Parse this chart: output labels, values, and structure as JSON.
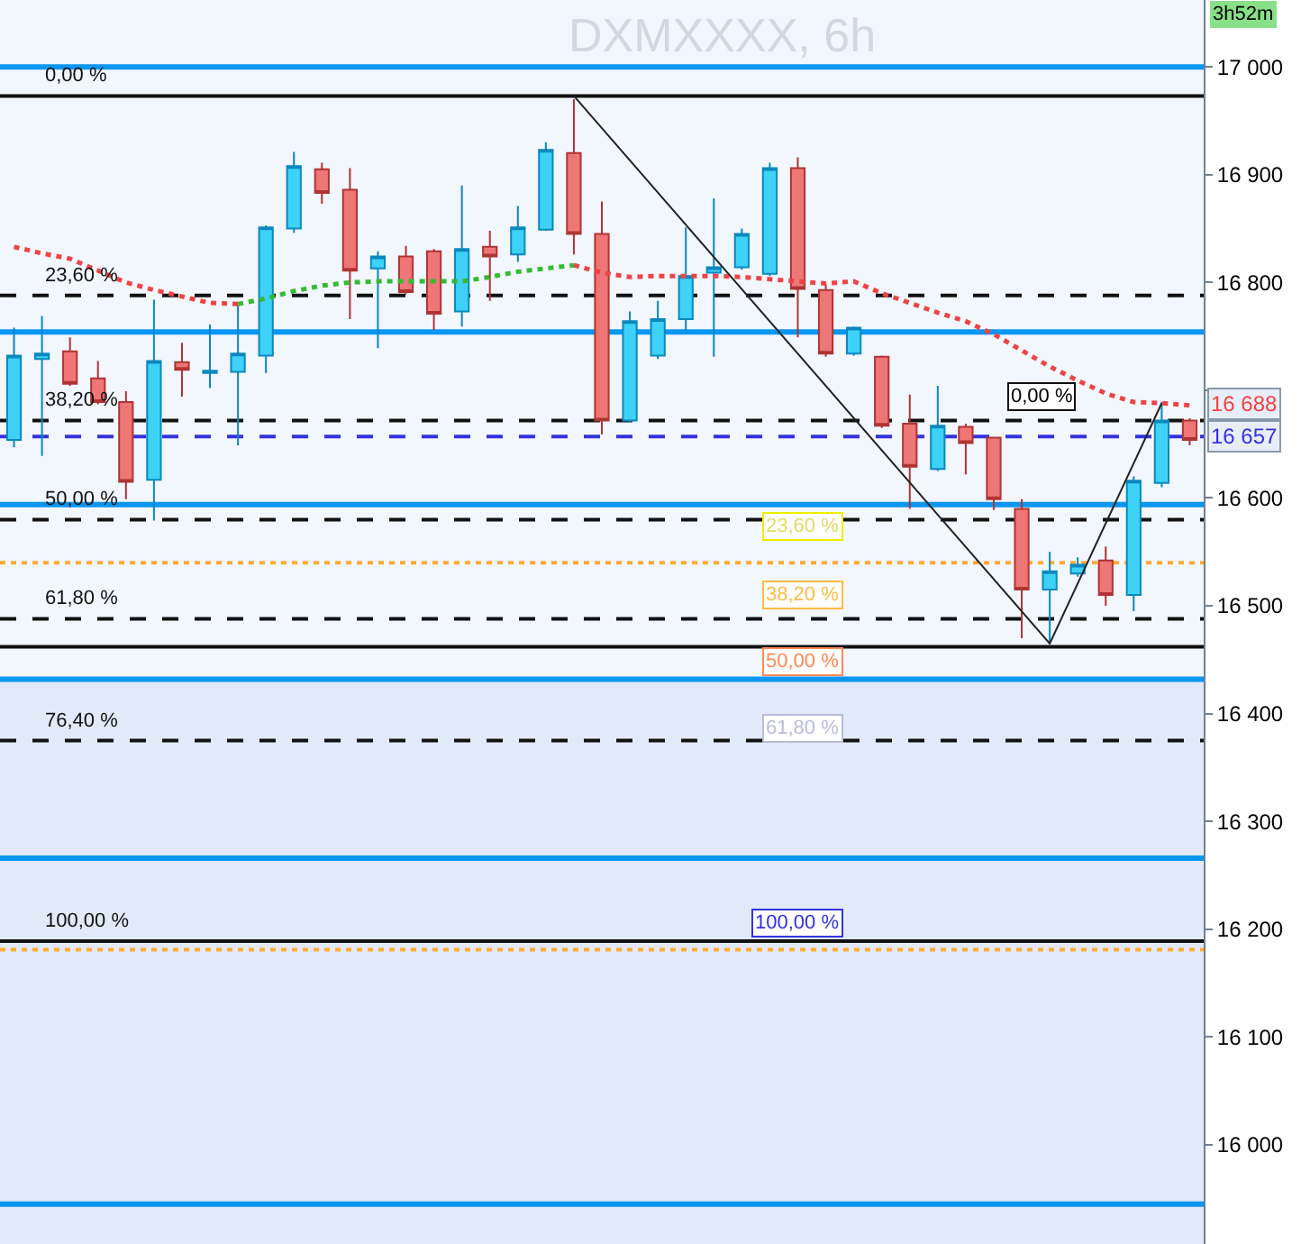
{
  "chart_data": {
    "type": "candlestick",
    "title": "DXMXXXX, 6h",
    "categories": [
      null,
      null,
      null,
      null,
      null,
      null,
      null,
      null,
      null,
      null,
      null,
      null,
      null,
      null,
      null,
      null,
      null,
      null,
      null,
      null,
      null,
      null,
      null,
      null,
      null,
      null,
      null,
      null,
      null,
      null,
      null,
      null,
      null,
      null,
      null,
      null,
      null,
      null,
      null,
      null,
      null,
      null,
      null
    ],
    "ohlc": [
      [
        16654,
        16758,
        16647,
        16732
      ],
      [
        16729,
        16769,
        16639,
        16734
      ],
      [
        16736,
        16749,
        16704,
        16706
      ],
      [
        16711,
        16727,
        16687,
        16689
      ],
      [
        16689,
        16699,
        16599,
        16615
      ],
      [
        16617,
        16784,
        16579,
        16727
      ],
      [
        16726,
        16744,
        16694,
        16719
      ],
      [
        16716,
        16761,
        16702,
        16718
      ],
      [
        16717,
        16779,
        16649,
        16734
      ],
      [
        16732,
        16853,
        16716,
        16851
      ],
      [
        16850,
        16921,
        16846,
        16908
      ],
      [
        16905,
        16911,
        16873,
        16883
      ],
      [
        16886,
        16906,
        16766,
        16811
      ],
      [
        16813,
        16829,
        16739,
        16824
      ],
      [
        16824,
        16834,
        16789,
        16791
      ],
      [
        16829,
        16831,
        16756,
        16771
      ],
      [
        16773,
        16890,
        16759,
        16831
      ],
      [
        16833,
        16848,
        16783,
        16824
      ],
      [
        16826,
        16871,
        16819,
        16851
      ],
      [
        16849,
        16930,
        16848,
        16923
      ],
      [
        16920,
        16970,
        16826,
        16845
      ],
      [
        16845,
        16875,
        16659,
        16672
      ],
      [
        16672,
        16773,
        16670,
        16764
      ],
      [
        16732,
        16783,
        16729,
        16766
      ],
      [
        16766,
        16851,
        16756,
        16806
      ],
      [
        16809,
        16878,
        16731,
        16814
      ],
      [
        16814,
        16850,
        16812,
        16845
      ],
      [
        16808,
        16911,
        16806,
        16906
      ],
      [
        16906,
        16916,
        16749,
        16794
      ],
      [
        16793,
        16798,
        16731,
        16734
      ],
      [
        16734,
        16759,
        16732,
        16758
      ],
      [
        16731,
        16732,
        16665,
        16667
      ],
      [
        16669,
        16696,
        16590,
        16629
      ],
      [
        16627,
        16704,
        16625,
        16667
      ],
      [
        16666,
        16669,
        16622,
        16651
      ],
      [
        16656,
        16656,
        16589,
        16599
      ],
      [
        16590,
        16599,
        16470,
        16515
      ],
      [
        16515,
        16550,
        16465,
        16532
      ],
      [
        16530,
        16545,
        16527,
        16538
      ],
      [
        16542,
        16555,
        16500,
        16510
      ],
      [
        16510,
        16620,
        16495,
        16616
      ],
      [
        16614,
        16689,
        16610,
        16672
      ],
      [
        16672,
        16674,
        16649,
        16654
      ]
    ],
    "series": [
      {
        "type": "line",
        "color": "#ee4444",
        "line_style": "dotted",
        "values": [
          16833,
          16827,
          16822,
          16811,
          16800,
          16793,
          16787,
          16781,
          16780,
          null,
          null,
          null,
          null,
          null,
          null,
          null,
          null,
          null,
          null,
          null,
          16816,
          16809,
          16805,
          16806,
          16806,
          16806,
          16805,
          16803,
          16801,
          16799,
          16801,
          16790,
          16781,
          16772,
          16764,
          16752,
          16737,
          16722,
          16709,
          16697,
          16689,
          16688,
          16686
        ]
      },
      {
        "type": "line",
        "color": "#33bb33",
        "line_style": "dotted",
        "values": [
          null,
          null,
          null,
          null,
          null,
          null,
          null,
          null,
          16780,
          16785,
          16792,
          16797,
          16800,
          16801,
          16801,
          16801,
          16801,
          16805,
          16810,
          16813,
          16816,
          null,
          null,
          null,
          null,
          null,
          null,
          null,
          null,
          null,
          null,
          null,
          null,
          null,
          null,
          null,
          null,
          null,
          null,
          null,
          null,
          null,
          null
        ]
      },
      {
        "type": "line",
        "color": "#222222",
        "line_style": "solid",
        "values": [
          null,
          null,
          null,
          null,
          null,
          null,
          null,
          null,
          null,
          null,
          null,
          null,
          null,
          null,
          null,
          null,
          null,
          null,
          null,
          null,
          16973,
          null,
          null,
          null,
          null,
          null,
          null,
          null,
          null,
          null,
          null,
          null,
          null,
          null,
          null,
          null,
          null,
          16465,
          null,
          null,
          null,
          16688,
          null
        ]
      }
    ],
    "ylim": [
      15908,
      17062
    ],
    "yticks": [
      {
        "value": 16000,
        "label": "16 000"
      },
      {
        "value": 16100,
        "label": "16 100"
      },
      {
        "value": 16200,
        "label": "16 200"
      },
      {
        "value": 16300,
        "label": "16 300"
      },
      {
        "value": 16400,
        "label": "16 400"
      },
      {
        "value": 16500,
        "label": "16 500"
      },
      {
        "value": 16600,
        "label": "16 600"
      },
      {
        "value": 16700,
        "label": null
      },
      {
        "value": 16800,
        "label": "16 800"
      },
      {
        "value": 16900,
        "label": "16 900"
      },
      {
        "value": 17000,
        "label": "17 000"
      }
    ],
    "ref_lines": [
      {
        "axis": "y",
        "value": 17000,
        "color": "#0a96f0",
        "line_style": "solid"
      },
      {
        "axis": "y",
        "value": 16754,
        "color": "#0a96f0",
        "line_style": "solid"
      },
      {
        "axis": "y",
        "value": 16594,
        "color": "#0a96f0",
        "line_style": "solid"
      },
      {
        "axis": "y",
        "value": 16432,
        "color": "#0a96f0",
        "line_style": "solid"
      },
      {
        "axis": "y",
        "value": 16266,
        "color": "#0a96f0",
        "line_style": "solid"
      },
      {
        "axis": "y",
        "value": 15945,
        "color": "#0a96f0",
        "line_style": "solid"
      },
      {
        "axis": "y",
        "value": 16973,
        "color": "#111111",
        "line_style": "solid"
      },
      {
        "axis": "y",
        "value": 16788,
        "color": "#111111",
        "line_style": "dashed"
      },
      {
        "axis": "y",
        "value": 16672,
        "color": "#111111",
        "line_style": "dashed"
      },
      {
        "axis": "y",
        "value": 16580,
        "color": "#111111",
        "line_style": "dashed"
      },
      {
        "axis": "y",
        "value": 16488,
        "color": "#111111",
        "line_style": "dashed"
      },
      {
        "axis": "y",
        "value": 16462,
        "color": "#111111",
        "line_style": "solid"
      },
      {
        "axis": "y",
        "value": 16375,
        "color": "#111111",
        "line_style": "dashed"
      },
      {
        "axis": "y",
        "value": 16189,
        "color": "#111111",
        "line_style": "solid"
      },
      {
        "axis": "y",
        "value": 16657,
        "color": "#3333dd",
        "line_style": "dashed"
      },
      {
        "axis": "y",
        "value": 16540,
        "color": "#ffaa33",
        "line_style": "dotted"
      },
      {
        "axis": "y",
        "value": 16181,
        "color": "#ffaa33",
        "line_style": "dotted"
      }
    ],
    "bands": [
      {
        "axis": "y",
        "from": 15908,
        "to": 16432,
        "color": "#e2eafa"
      }
    ],
    "annotations": [
      "3h52m",
      {
        "text": "16 688",
        "y": 16688
      },
      {
        "text": "16 657",
        "y": 16657
      },
      {
        "text": "0,00 %",
        "y": 16973
      },
      {
        "text": "23,60 %",
        "y": 16788
      },
      {
        "text": "38,20 %",
        "y": 16672
      },
      {
        "text": "50,00 %",
        "y": 16580
      },
      {
        "text": "61,80 %",
        "y": 16488
      },
      {
        "text": "76,40 %",
        "y": 16375
      },
      {
        "text": "100,00 %",
        "y": 16189
      },
      "0,00 %",
      "23,60 %",
      "38,20 %",
      "50,00 %",
      "61,80 %",
      "100,00 %"
    ],
    "grid": false,
    "tick_labels": "y"
  }
}
